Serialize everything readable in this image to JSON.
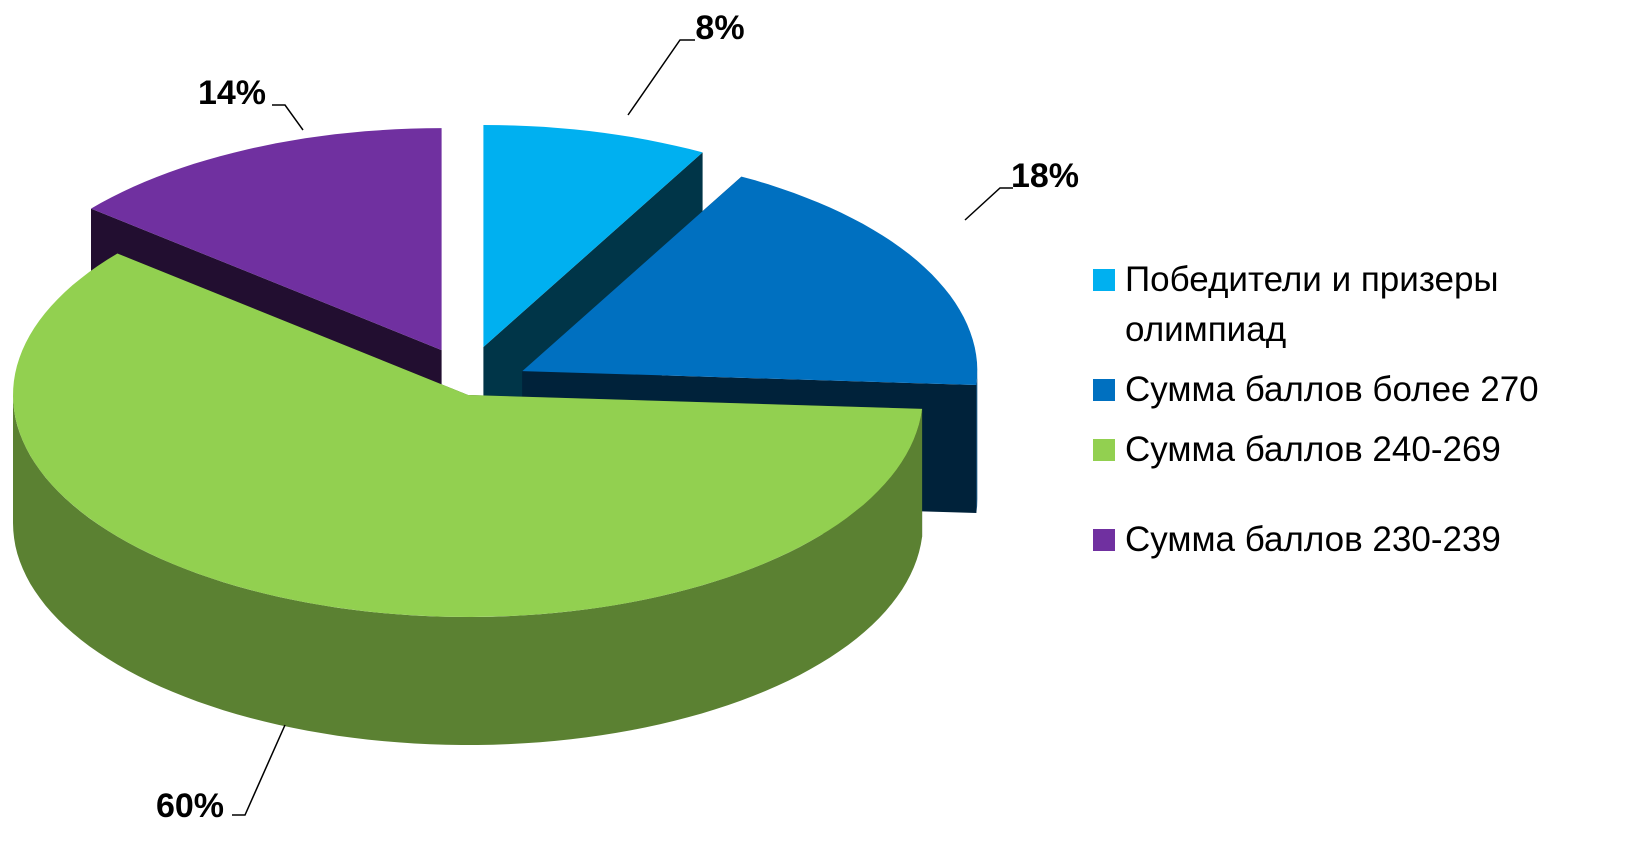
{
  "chart_data": {
    "type": "pie3d",
    "categories": [
      "Победители и призеры олимпиад",
      "Сумма баллов более 270",
      "Сумма баллов 240-269",
      "Сумма баллов 230-239"
    ],
    "values": [
      8,
      18,
      60,
      14
    ],
    "value_labels": [
      "8%",
      "18%",
      "60%",
      "14%"
    ],
    "colors": [
      "#00b0f0",
      "#0070c0",
      "#92d050",
      "#7030a0"
    ],
    "legend": "right"
  }
}
